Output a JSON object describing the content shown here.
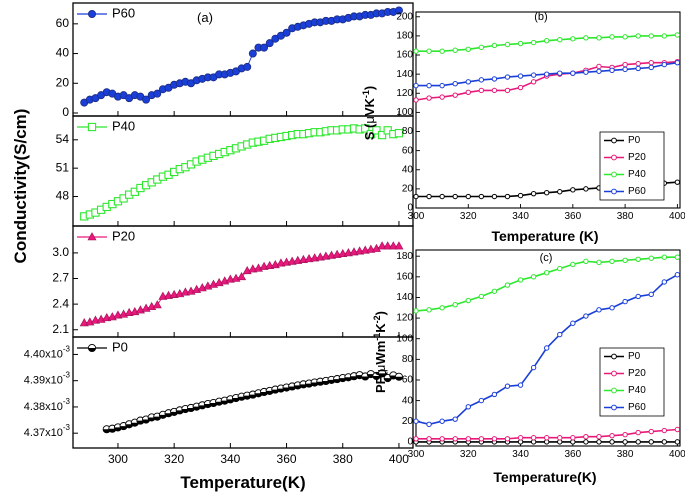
{
  "colors": {
    "P0": "#000000",
    "P20": "#e8197a",
    "P40": "#2ee82e",
    "P60": "#1a3fd8"
  },
  "chart_data": [
    {
      "id": "a",
      "type": "line",
      "panel_label": "(a)",
      "xlabel": "Temperature(K)",
      "ylabel": "Conductivity(S/cm)",
      "xlim": [
        284,
        405
      ],
      "xticks": [
        "300",
        "320",
        "340",
        "360",
        "380",
        "400"
      ],
      "xtick_values": [
        300,
        320,
        340,
        360,
        380,
        400
      ],
      "subplots": [
        {
          "series": "P60",
          "marker": "circle",
          "legend": "P60",
          "legend_position": "top-left",
          "ylim": [
            0,
            72
          ],
          "yticks": [
            "0",
            "20",
            "40",
            "60"
          ],
          "ytick_values": [
            0,
            20,
            40,
            60
          ],
          "x": [
            288,
            290,
            292,
            294,
            296,
            298,
            300,
            302,
            304,
            306,
            308,
            310,
            312,
            314,
            316,
            318,
            320,
            322,
            324,
            326,
            328,
            330,
            332,
            334,
            336,
            338,
            340,
            342,
            344,
            346,
            348,
            350,
            352,
            354,
            356,
            358,
            360,
            362,
            364,
            366,
            368,
            370,
            372,
            374,
            376,
            378,
            380,
            382,
            384,
            386,
            388,
            390,
            392,
            394,
            396,
            398,
            400
          ],
          "y": [
            7,
            9,
            10,
            12,
            14,
            13,
            11,
            12,
            10,
            12,
            11,
            9,
            12,
            13,
            16,
            17,
            19,
            20,
            21,
            20,
            22,
            23,
            24,
            24,
            26,
            26,
            27,
            28,
            30,
            31,
            40,
            44,
            44,
            47,
            50,
            52,
            54,
            57,
            58,
            59,
            60,
            61,
            61,
            62,
            62,
            63,
            63,
            64,
            65,
            65,
            66,
            66,
            67,
            67,
            68,
            68,
            69
          ]
        },
        {
          "series": "P40",
          "marker": "square",
          "legend": "P40",
          "legend_position": "top-left",
          "ylim": [
            45.2,
            56.2
          ],
          "yticks": [
            "48",
            "51",
            "54"
          ],
          "ytick_values": [
            48,
            51,
            54
          ],
          "x": [
            288,
            290,
            292,
            294,
            296,
            298,
            300,
            302,
            304,
            306,
            308,
            310,
            312,
            314,
            316,
            318,
            320,
            322,
            324,
            326,
            328,
            330,
            332,
            334,
            336,
            338,
            340,
            342,
            344,
            346,
            348,
            350,
            352,
            354,
            356,
            358,
            360,
            362,
            364,
            366,
            368,
            370,
            372,
            374,
            376,
            378,
            380,
            382,
            384,
            386,
            388,
            390,
            392,
            394,
            396,
            398,
            400
          ],
          "y": [
            45.9,
            46.1,
            46.3,
            46.6,
            46.9,
            47.2,
            47.5,
            47.8,
            48.2,
            48.5,
            48.9,
            49.2,
            49.5,
            49.8,
            50.1,
            50.3,
            50.6,
            50.9,
            51.1,
            51.4,
            51.7,
            51.9,
            52.1,
            52.3,
            52.5,
            52.7,
            52.9,
            53.1,
            53.3,
            53.5,
            53.7,
            53.8,
            53.9,
            54.1,
            54.2,
            54.3,
            54.4,
            54.5,
            54.6,
            54.6,
            54.7,
            54.8,
            54.8,
            54.9,
            55.0,
            55.0,
            55.1,
            55.1,
            55.2,
            55.1,
            55.2,
            54.6,
            55.0,
            54.5,
            55.0,
            54.6,
            54.7
          ]
        },
        {
          "series": "P20",
          "marker": "triangle",
          "legend": "P20",
          "legend_position": "top-left",
          "ylim": [
            2.05,
            3.28
          ],
          "yticks": [
            "2.1",
            "2.4",
            "2.7",
            "3.0"
          ],
          "ytick_values": [
            2.1,
            2.4,
            2.7,
            3.0
          ],
          "x": [
            288,
            290,
            292,
            294,
            296,
            298,
            300,
            302,
            304,
            306,
            308,
            310,
            312,
            314,
            316,
            318,
            320,
            322,
            324,
            326,
            328,
            330,
            332,
            334,
            336,
            338,
            340,
            342,
            344,
            346,
            348,
            350,
            352,
            354,
            356,
            358,
            360,
            362,
            364,
            366,
            368,
            370,
            372,
            374,
            376,
            378,
            380,
            382,
            384,
            386,
            388,
            390,
            392,
            394,
            396,
            398,
            400
          ],
          "y": [
            2.18,
            2.19,
            2.21,
            2.22,
            2.24,
            2.25,
            2.27,
            2.28,
            2.3,
            2.31,
            2.33,
            2.35,
            2.37,
            2.39,
            2.49,
            2.5,
            2.51,
            2.52,
            2.54,
            2.55,
            2.57,
            2.59,
            2.61,
            2.63,
            2.65,
            2.67,
            2.69,
            2.7,
            2.72,
            2.79,
            2.81,
            2.82,
            2.84,
            2.85,
            2.86,
            2.88,
            2.89,
            2.9,
            2.91,
            2.92,
            2.93,
            2.94,
            2.95,
            2.96,
            2.97,
            2.98,
            2.99,
            3.0,
            3.01,
            3.02,
            3.03,
            3.04,
            3.05,
            3.08,
            3.08,
            3.08,
            3.08
          ]
        },
        {
          "series": "P0",
          "marker": "half-circle",
          "legend": "P0",
          "legend_position": "top-left",
          "ylim": [
            4.3655,
            4.4055
          ],
          "yticks": [
            "4.37x10-3",
            "4.38x10-3",
            "4.39x10-3",
            "4.40x10-3"
          ],
          "ytick_values": [
            4.37,
            4.38,
            4.39,
            4.4
          ],
          "x": [
            296,
            298,
            300,
            302,
            304,
            306,
            308,
            310,
            312,
            314,
            316,
            318,
            320,
            322,
            324,
            326,
            328,
            330,
            332,
            334,
            336,
            338,
            340,
            342,
            344,
            346,
            348,
            350,
            352,
            354,
            356,
            358,
            360,
            362,
            364,
            366,
            368,
            370,
            372,
            374,
            376,
            378,
            380,
            382,
            384,
            386,
            388,
            390,
            392,
            394,
            396,
            398,
            400
          ],
          "y": [
            4.3715,
            4.3717,
            4.3722,
            4.3727,
            4.3734,
            4.374,
            4.3748,
            4.3752,
            4.376,
            4.3763,
            4.377,
            4.3776,
            4.3781,
            4.3787,
            4.3792,
            4.3796,
            4.3801,
            4.3806,
            4.3811,
            4.3815,
            4.382,
            4.3824,
            4.3829,
            4.3834,
            4.3839,
            4.3843,
            4.3847,
            4.3852,
            4.3857,
            4.3861,
            4.3866,
            4.387,
            4.3874,
            4.3878,
            4.3882,
            4.3886,
            4.3889,
            4.3893,
            4.3896,
            4.3899,
            4.3903,
            4.3906,
            4.391,
            4.3913,
            4.3917,
            4.3921,
            4.3916,
            4.3925,
            4.3918,
            4.3928,
            4.391,
            4.392,
            4.3915
          ]
        }
      ]
    },
    {
      "id": "b",
      "type": "line",
      "panel_label": "(b)",
      "xlabel": "Temperature (K)",
      "ylabel": "S (μVK-1)",
      "ylabel_parts": [
        "S (",
        "μ",
        "VK",
        "-1",
        ")"
      ],
      "xlim": [
        300,
        401
      ],
      "ylim": [
        0,
        205
      ],
      "xticks": [
        "300",
        "320",
        "340",
        "360",
        "380",
        "400"
      ],
      "xtick_values": [
        300,
        320,
        340,
        360,
        380,
        400
      ],
      "yticks": [
        "0",
        "20",
        "40",
        "60",
        "80",
        "100",
        "120",
        "140",
        "160",
        "180",
        "200"
      ],
      "ytick_values": [
        0,
        20,
        40,
        60,
        80,
        100,
        120,
        140,
        160,
        180,
        200
      ],
      "legend": [
        "P0",
        "P20",
        "P40",
        "P60"
      ],
      "legend_position": "right-middle",
      "x": [
        300,
        305,
        310,
        315,
        320,
        325,
        330,
        335,
        340,
        345,
        350,
        355,
        360,
        365,
        370,
        375,
        380,
        385,
        390,
        395,
        400
      ],
      "series": [
        {
          "name": "P0",
          "values": [
            12,
            12,
            12,
            12,
            12,
            12,
            12,
            12,
            13,
            15,
            16,
            17,
            19,
            20,
            21,
            22,
            23,
            25,
            26,
            26,
            27
          ]
        },
        {
          "name": "P20",
          "values": [
            113,
            115,
            116,
            118,
            121,
            123,
            123,
            123,
            126,
            132,
            138,
            140,
            141,
            144,
            148,
            147,
            150,
            151,
            152,
            152,
            153
          ]
        },
        {
          "name": "P40",
          "values": [
            164,
            164,
            164,
            165,
            166,
            168,
            170,
            171,
            172,
            173,
            175,
            176,
            177,
            178,
            178,
            179,
            179,
            180,
            180,
            180,
            181
          ]
        },
        {
          "name": "P60",
          "values": [
            128,
            128,
            128,
            130,
            132,
            134,
            135,
            137,
            138,
            139,
            140,
            141,
            141,
            142,
            143,
            144,
            145,
            146,
            147,
            150,
            152
          ]
        }
      ]
    },
    {
      "id": "c",
      "type": "line",
      "panel_label": "(c)",
      "xlabel": "Temperature(K)",
      "ylabel": "PF(μWm-1K-2)",
      "ylabel_parts": [
        "PF(",
        "μ",
        "Wm",
        "-1",
        "K",
        "-2",
        ")"
      ],
      "xlim": [
        300,
        401
      ],
      "ylim": [
        -4,
        186
      ],
      "xticks": [
        "300",
        "320",
        "340",
        "360",
        "380",
        "400"
      ],
      "xtick_values": [
        300,
        320,
        340,
        360,
        380,
        400
      ],
      "yticks": [
        "0",
        "20",
        "40",
        "60",
        "80",
        "100",
        "120",
        "140",
        "160",
        "180"
      ],
      "ytick_values": [
        0,
        20,
        40,
        60,
        80,
        100,
        120,
        140,
        160,
        180
      ],
      "legend": [
        "P0",
        "P20",
        "P40",
        "P60"
      ],
      "legend_position": "center",
      "x": [
        300,
        305,
        310,
        315,
        320,
        325,
        330,
        335,
        340,
        345,
        350,
        355,
        360,
        365,
        370,
        375,
        380,
        385,
        390,
        395,
        400
      ],
      "series": [
        {
          "name": "P0",
          "values": [
            0,
            0,
            0,
            0,
            0,
            0,
            0,
            0,
            0,
            0,
            0,
            0,
            0,
            0,
            0,
            0,
            0,
            0,
            0,
            0,
            0
          ]
        },
        {
          "name": "P20",
          "values": [
            3,
            3,
            3,
            3,
            3,
            3,
            3,
            3,
            4,
            4,
            4,
            4,
            4,
            5,
            5,
            6,
            7,
            9,
            10,
            11,
            12
          ]
        },
        {
          "name": "P40",
          "values": [
            127,
            128,
            130,
            133,
            137,
            141,
            146,
            152,
            157,
            160,
            164,
            168,
            172,
            175,
            174,
            175,
            176,
            177,
            178,
            179,
            179
          ]
        },
        {
          "name": "P60",
          "values": [
            20,
            17,
            20,
            22,
            34,
            40,
            46,
            54,
            55,
            72,
            91,
            104,
            115,
            122,
            128,
            130,
            136,
            141,
            143,
            155,
            162
          ]
        }
      ]
    }
  ]
}
